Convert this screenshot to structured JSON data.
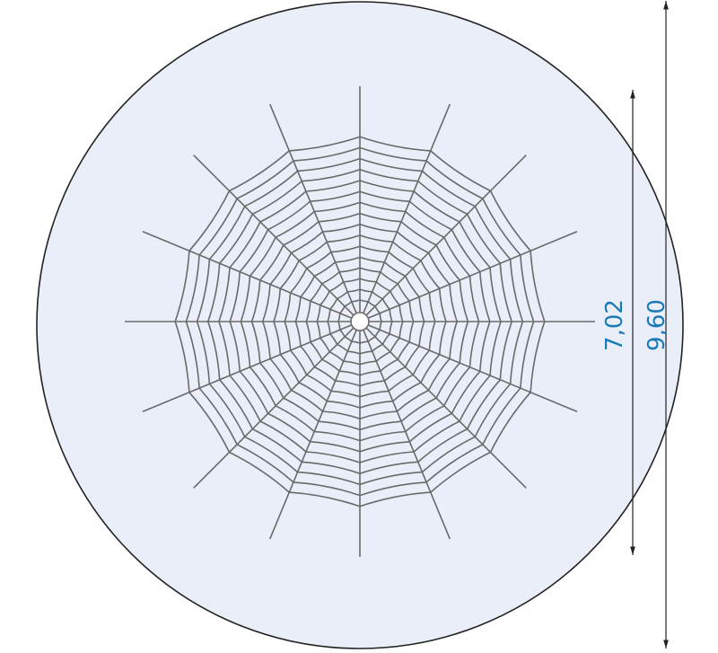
{
  "dimensions": [
    {
      "label": "7,02"
    },
    {
      "label": "9,60"
    }
  ]
}
